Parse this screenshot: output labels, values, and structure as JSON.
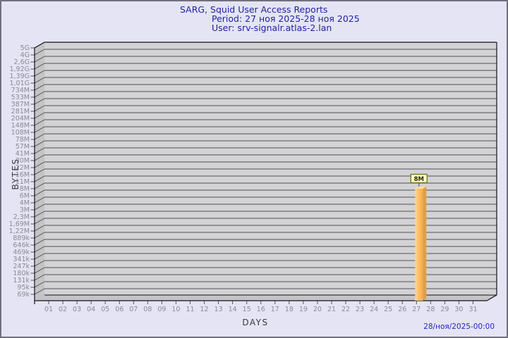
{
  "header": {
    "title": "SARG, Squid User Access Reports",
    "period": "Period: 27 ноя 2025-28 ноя 2025",
    "user": "User: srv-signalr.atlas-2.lan"
  },
  "footer": {
    "timestamp": "28/ноя/2025-00:00"
  },
  "chart_data": {
    "type": "bar",
    "title": "SARG, Squid User Access Reports",
    "subtitle_period": "Period: 27 ноя 2025-28 ноя 2025",
    "subtitle_user": "User: srv-signalr.atlas-2.lan",
    "xlabel": "DAYS",
    "ylabel": "BYTES",
    "axis_style": "3d-left-wall",
    "grid": "horizontal-on",
    "y_axis_direction": "top-to-bottom",
    "y_tick_labels": [
      "5G",
      "4G",
      "2,6G",
      "1,92G",
      "1,39G",
      "1,01G",
      "734M",
      "533M",
      "387M",
      "281M",
      "204M",
      "148M",
      "108M",
      "78M",
      "57M",
      "41M",
      "30M",
      "22M",
      "16M",
      "11M",
      "8M",
      "6M",
      "4M",
      "3M",
      "2,3M",
      "1,69M",
      "1,22M",
      "889k",
      "646k",
      "469k",
      "341k",
      "247k",
      "180k",
      "131k",
      "95k",
      "69k"
    ],
    "x_tick_labels": [
      "01",
      "02",
      "03",
      "04",
      "05",
      "06",
      "07",
      "08",
      "09",
      "10",
      "11",
      "12",
      "13",
      "14",
      "15",
      "16",
      "17",
      "18",
      "19",
      "20",
      "21",
      "22",
      "23",
      "24",
      "25",
      "26",
      "27",
      "28",
      "29",
      "30",
      "31"
    ],
    "bars": [
      {
        "day": "27",
        "value_label": "8M",
        "approx_bytes": 8000000
      }
    ],
    "colors": {
      "background": "#e4e4f5",
      "title_text": "#22229e",
      "timestamp_text": "#2323c3",
      "tick_text": "#8b8b93",
      "axis_title_text": "#3a3a40",
      "plot_plane": "#d3d3d5",
      "plot_wall": "#c4c4c8",
      "gridline": "#505054",
      "edge": "#141414",
      "bar_front_light": "#fdd795",
      "bar_front": "#fcc168",
      "bar_front_dark": "#f6a94e",
      "bar_side": "#dda045",
      "bar_top": "#fddf9e",
      "annotation_fill": "#ffffc8",
      "annotation_border": "#70701e"
    }
  }
}
